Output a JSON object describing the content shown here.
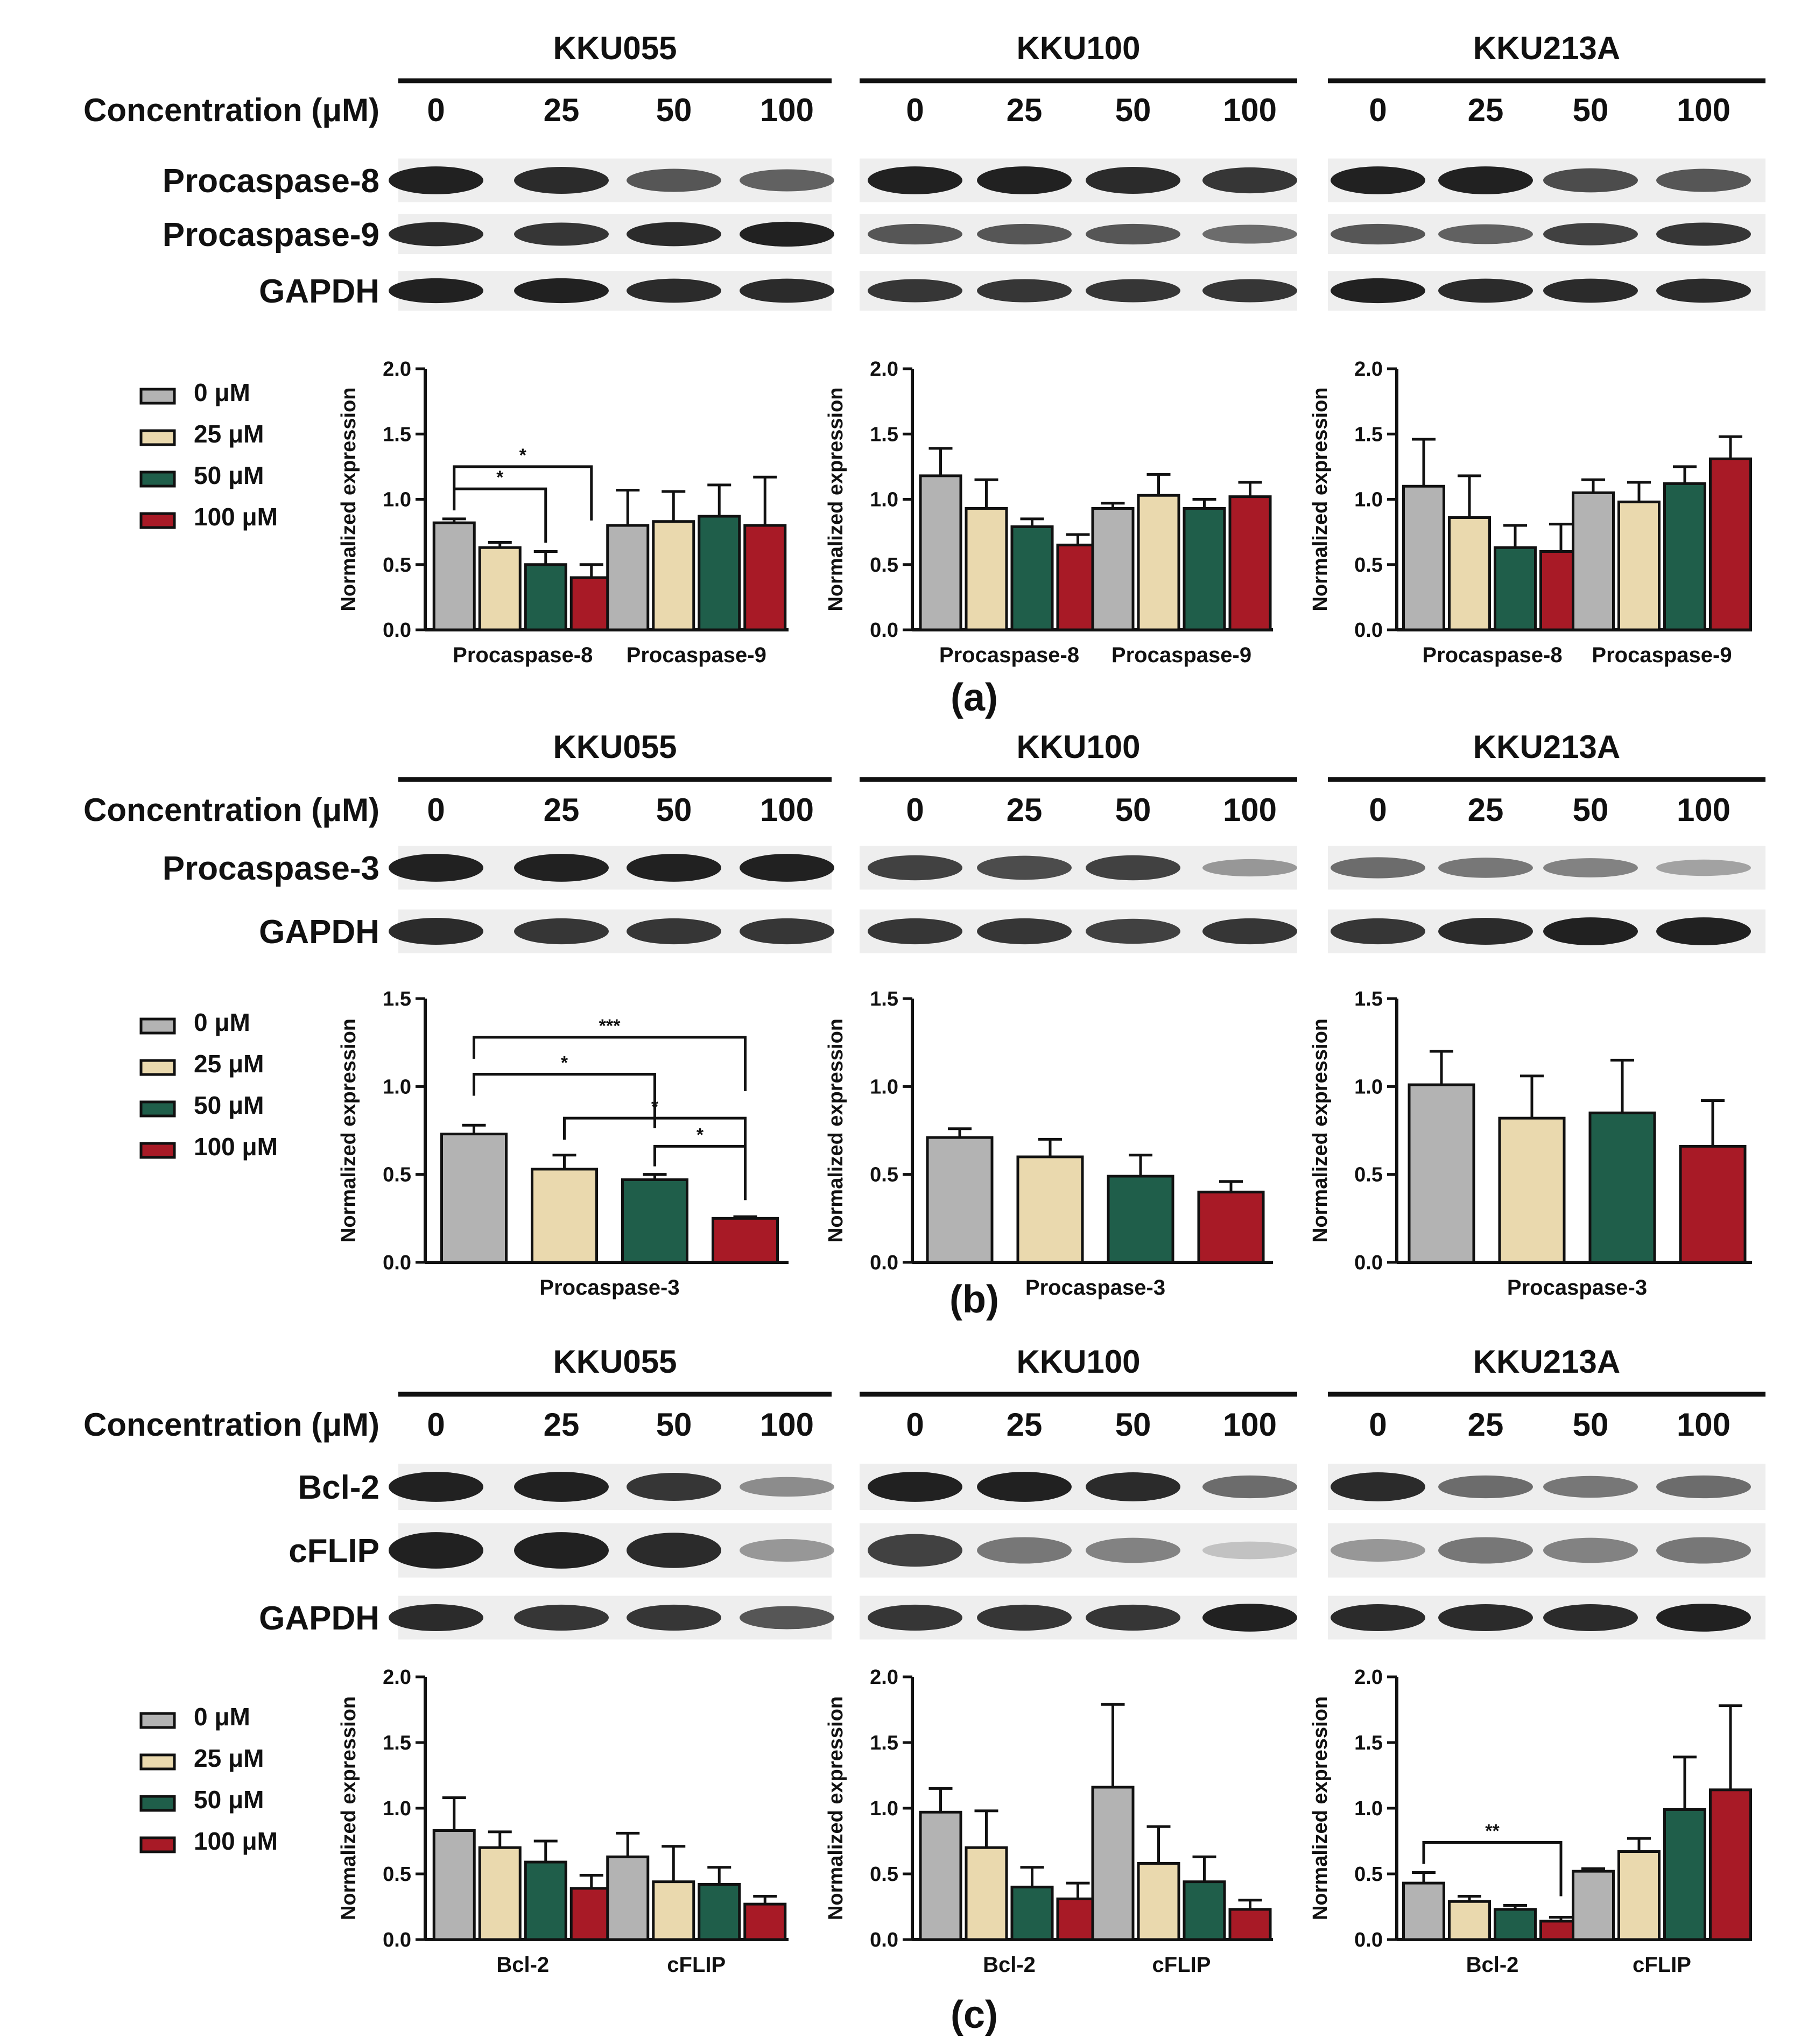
{
  "colors": {
    "c0": "#b3b3b3",
    "c25": "#ead9ae",
    "c50": "#1f5e4a",
    "c100": "#a81a26",
    "axis": "#111111",
    "band": "#151515"
  },
  "cell_lines": [
    "KKU055",
    "KKU100",
    "KKU213A"
  ],
  "concentration_label": "Concentration (μM)",
  "concentrations": [
    "0",
    "25",
    "50",
    "100"
  ],
  "legend": [
    "0 μM",
    "25 μM",
    "50 μM",
    "100 μM"
  ],
  "ylabel": "Normalized expression",
  "panels": [
    {
      "label": "(a)",
      "proteins": [
        "Procaspase-8",
        "Procaspase-9",
        "GAPDH"
      ]
    },
    {
      "label": "(b)",
      "proteins": [
        "Procaspase-3",
        "GAPDH"
      ]
    },
    {
      "label": "(c)",
      "proteins": [
        "Bcl-2",
        "cFLIP",
        "GAPDH"
      ]
    }
  ],
  "blot_intensity": {
    "a": [
      [
        [
          0.95,
          0.9,
          0.7,
          0.65
        ],
        [
          0.95,
          0.95,
          0.9,
          0.85
        ],
        [
          0.95,
          0.95,
          0.75,
          0.7
        ]
      ],
      [
        [
          0.9,
          0.85,
          0.9,
          0.95
        ],
        [
          0.7,
          0.7,
          0.7,
          0.6
        ],
        [
          0.7,
          0.65,
          0.8,
          0.85
        ]
      ],
      [
        [
          0.95,
          0.95,
          0.9,
          0.9
        ],
        [
          0.85,
          0.85,
          0.85,
          0.85
        ],
        [
          0.95,
          0.9,
          0.9,
          0.9
        ]
      ]
    ],
    "b": [
      [
        [
          0.95,
          0.95,
          0.95,
          0.95
        ],
        [
          0.8,
          0.75,
          0.8,
          0.4
        ],
        [
          0.6,
          0.55,
          0.5,
          0.35
        ]
      ],
      [
        [
          0.9,
          0.85,
          0.85,
          0.85
        ],
        [
          0.85,
          0.85,
          0.8,
          0.85
        ],
        [
          0.85,
          0.9,
          0.95,
          0.95
        ]
      ]
    ],
    "c": [
      [
        [
          0.95,
          0.95,
          0.85,
          0.45
        ],
        [
          0.95,
          0.95,
          0.9,
          0.6
        ],
        [
          0.9,
          0.6,
          0.55,
          0.6
        ]
      ],
      [
        [
          0.95,
          0.95,
          0.9,
          0.4
        ],
        [
          0.8,
          0.55,
          0.5,
          0.2
        ],
        [
          0.4,
          0.55,
          0.5,
          0.55
        ]
      ],
      [
        [
          0.9,
          0.85,
          0.85,
          0.7
        ],
        [
          0.85,
          0.85,
          0.85,
          0.95
        ],
        [
          0.9,
          0.9,
          0.9,
          0.95
        ]
      ]
    ]
  },
  "chart_data": [
    {
      "type": "bar",
      "panel": "(a)",
      "title": "KKU055",
      "categories": [
        "Procaspase-8",
        "Procaspase-9"
      ],
      "ylim": [
        0,
        2.0
      ],
      "yticks": [
        "0.0",
        "0.5",
        "1.0",
        "1.5",
        "2.0"
      ],
      "ylabel": "Normalized expression",
      "series": [
        {
          "name": "0 μM",
          "values": [
            0.82,
            0.8
          ],
          "errors": [
            0.03,
            0.27
          ]
        },
        {
          "name": "25 μM",
          "values": [
            0.63,
            0.83
          ],
          "errors": [
            0.04,
            0.23
          ]
        },
        {
          "name": "50 μM",
          "values": [
            0.5,
            0.87
          ],
          "errors": [
            0.1,
            0.24
          ]
        },
        {
          "name": "100 μM",
          "values": [
            0.4,
            0.8
          ],
          "errors": [
            0.1,
            0.37
          ]
        }
      ],
      "significance": [
        {
          "cat": 0,
          "from": 0,
          "to": 2,
          "label": "*",
          "level": 1.08
        },
        {
          "cat": 0,
          "from": 0,
          "to": 3,
          "label": "*",
          "level": 1.25
        }
      ]
    },
    {
      "type": "bar",
      "panel": "(a)",
      "title": "KKU100",
      "categories": [
        "Procaspase-8",
        "Procaspase-9"
      ],
      "ylim": [
        0,
        2.0
      ],
      "yticks": [
        "0.0",
        "0.5",
        "1.0",
        "1.5",
        "2.0"
      ],
      "ylabel": "Normalized expression",
      "series": [
        {
          "name": "0 μM",
          "values": [
            1.18,
            0.93
          ],
          "errors": [
            0.21,
            0.04
          ]
        },
        {
          "name": "25 μM",
          "values": [
            0.93,
            1.03
          ],
          "errors": [
            0.22,
            0.16
          ]
        },
        {
          "name": "50 μM",
          "values": [
            0.79,
            0.93
          ],
          "errors": [
            0.06,
            0.07
          ]
        },
        {
          "name": "100 μM",
          "values": [
            0.65,
            1.02
          ],
          "errors": [
            0.08,
            0.11
          ]
        }
      ],
      "significance": []
    },
    {
      "type": "bar",
      "panel": "(a)",
      "title": "KKU213A",
      "categories": [
        "Procaspase-8",
        "Procaspase-9"
      ],
      "ylim": [
        0,
        2.0
      ],
      "yticks": [
        "0.0",
        "0.5",
        "1.0",
        "1.5",
        "2.0"
      ],
      "ylabel": "Normalized expression",
      "series": [
        {
          "name": "0 μM",
          "values": [
            1.1,
            1.05
          ],
          "errors": [
            0.36,
            0.1
          ]
        },
        {
          "name": "25 μM",
          "values": [
            0.86,
            0.98
          ],
          "errors": [
            0.32,
            0.15
          ]
        },
        {
          "name": "50 μM",
          "values": [
            0.63,
            1.12
          ],
          "errors": [
            0.17,
            0.13
          ]
        },
        {
          "name": "100 μM",
          "values": [
            0.6,
            1.31
          ],
          "errors": [
            0.21,
            0.17
          ]
        }
      ],
      "significance": []
    },
    {
      "type": "bar",
      "panel": "(b)",
      "title": "KKU055",
      "categories": [
        "Procaspase-3"
      ],
      "ylim": [
        0,
        1.5
      ],
      "yticks": [
        "0.0",
        "0.5",
        "1.0",
        "1.5"
      ],
      "ylabel": "Normalized expression",
      "series": [
        {
          "name": "0 μM",
          "values": [
            0.73
          ],
          "errors": [
            0.05
          ]
        },
        {
          "name": "25 μM",
          "values": [
            0.53
          ],
          "errors": [
            0.08
          ]
        },
        {
          "name": "50 μM",
          "values": [
            0.47
          ],
          "errors": [
            0.03
          ]
        },
        {
          "name": "100 μM",
          "values": [
            0.25
          ],
          "errors": [
            0.01
          ]
        }
      ],
      "significance": [
        {
          "cat": 0,
          "from": 0,
          "to": 3,
          "label": "***",
          "level": 1.28
        },
        {
          "cat": 0,
          "from": 0,
          "to": 2,
          "label": "*",
          "level": 1.07
        },
        {
          "cat": 0,
          "from": 1,
          "to": 3,
          "label": "*",
          "level": 0.82
        },
        {
          "cat": 0,
          "from": 2,
          "to": 3,
          "label": "*",
          "level": 0.66
        }
      ]
    },
    {
      "type": "bar",
      "panel": "(b)",
      "title": "KKU100",
      "categories": [
        "Procaspase-3"
      ],
      "ylim": [
        0,
        1.5
      ],
      "yticks": [
        "0.0",
        "0.5",
        "1.0",
        "1.5"
      ],
      "ylabel": "Normalized expression",
      "series": [
        {
          "name": "0 μM",
          "values": [
            0.71
          ],
          "errors": [
            0.05
          ]
        },
        {
          "name": "25 μM",
          "values": [
            0.6
          ],
          "errors": [
            0.1
          ]
        },
        {
          "name": "50 μM",
          "values": [
            0.49
          ],
          "errors": [
            0.12
          ]
        },
        {
          "name": "100 μM",
          "values": [
            0.4
          ],
          "errors": [
            0.06
          ]
        }
      ],
      "significance": []
    },
    {
      "type": "bar",
      "panel": "(b)",
      "title": "KKU213A",
      "categories": [
        "Procaspase-3"
      ],
      "ylim": [
        0,
        1.5
      ],
      "yticks": [
        "0.0",
        "0.5",
        "1.0",
        "1.5"
      ],
      "ylabel": "Normalized expression",
      "series": [
        {
          "name": "0 μM",
          "values": [
            1.01
          ],
          "errors": [
            0.19
          ]
        },
        {
          "name": "25 μM",
          "values": [
            0.82
          ],
          "errors": [
            0.24
          ]
        },
        {
          "name": "50 μM",
          "values": [
            0.85
          ],
          "errors": [
            0.3
          ]
        },
        {
          "name": "100 μM",
          "values": [
            0.66
          ],
          "errors": [
            0.26
          ]
        }
      ],
      "significance": []
    },
    {
      "type": "bar",
      "panel": "(c)",
      "title": "KKU055",
      "categories": [
        "Bcl-2",
        "cFLIP"
      ],
      "ylim": [
        0,
        2.0
      ],
      "yticks": [
        "0.0",
        "0.5",
        "1.0",
        "1.5",
        "2.0"
      ],
      "ylabel": "Normalized expression",
      "series": [
        {
          "name": "0 μM",
          "values": [
            0.83,
            0.63
          ],
          "errors": [
            0.25,
            0.18
          ]
        },
        {
          "name": "25 μM",
          "values": [
            0.7,
            0.44
          ],
          "errors": [
            0.12,
            0.27
          ]
        },
        {
          "name": "50 μM",
          "values": [
            0.59,
            0.42
          ],
          "errors": [
            0.16,
            0.13
          ]
        },
        {
          "name": "100 μM",
          "values": [
            0.39,
            0.27
          ],
          "errors": [
            0.1,
            0.06
          ]
        }
      ],
      "significance": []
    },
    {
      "type": "bar",
      "panel": "(c)",
      "title": "KKU100",
      "categories": [
        "Bcl-2",
        "cFLIP"
      ],
      "ylim": [
        0,
        2.0
      ],
      "yticks": [
        "0.0",
        "0.5",
        "1.0",
        "1.5",
        "2.0"
      ],
      "ylabel": "Normalized expression",
      "series": [
        {
          "name": "0 μM",
          "values": [
            0.97,
            1.16
          ],
          "errors": [
            0.18,
            0.63
          ]
        },
        {
          "name": "25 μM",
          "values": [
            0.7,
            0.58
          ],
          "errors": [
            0.28,
            0.28
          ]
        },
        {
          "name": "50 μM",
          "values": [
            0.4,
            0.44
          ],
          "errors": [
            0.15,
            0.19
          ]
        },
        {
          "name": "100 μM",
          "values": [
            0.31,
            0.23
          ],
          "errors": [
            0.12,
            0.07
          ]
        }
      ],
      "significance": []
    },
    {
      "type": "bar",
      "panel": "(c)",
      "title": "KKU213A",
      "categories": [
        "Bcl-2",
        "cFLIP"
      ],
      "ylim": [
        0,
        2.0
      ],
      "yticks": [
        "0.0",
        "0.5",
        "1.0",
        "1.5",
        "2.0"
      ],
      "ylabel": "Normalized expression",
      "series": [
        {
          "name": "0 μM",
          "values": [
            0.43,
            0.52
          ],
          "errors": [
            0.08,
            0.02
          ]
        },
        {
          "name": "25 μM",
          "values": [
            0.29,
            0.67
          ],
          "errors": [
            0.04,
            0.1
          ]
        },
        {
          "name": "50 μM",
          "values": [
            0.23,
            0.99
          ],
          "errors": [
            0.03,
            0.4
          ]
        },
        {
          "name": "100 μM",
          "values": [
            0.14,
            1.14
          ],
          "errors": [
            0.03,
            0.64
          ]
        }
      ],
      "significance": [
        {
          "cat": 0,
          "from": 0,
          "to": 3,
          "label": "**",
          "level": 0.74
        }
      ]
    }
  ]
}
